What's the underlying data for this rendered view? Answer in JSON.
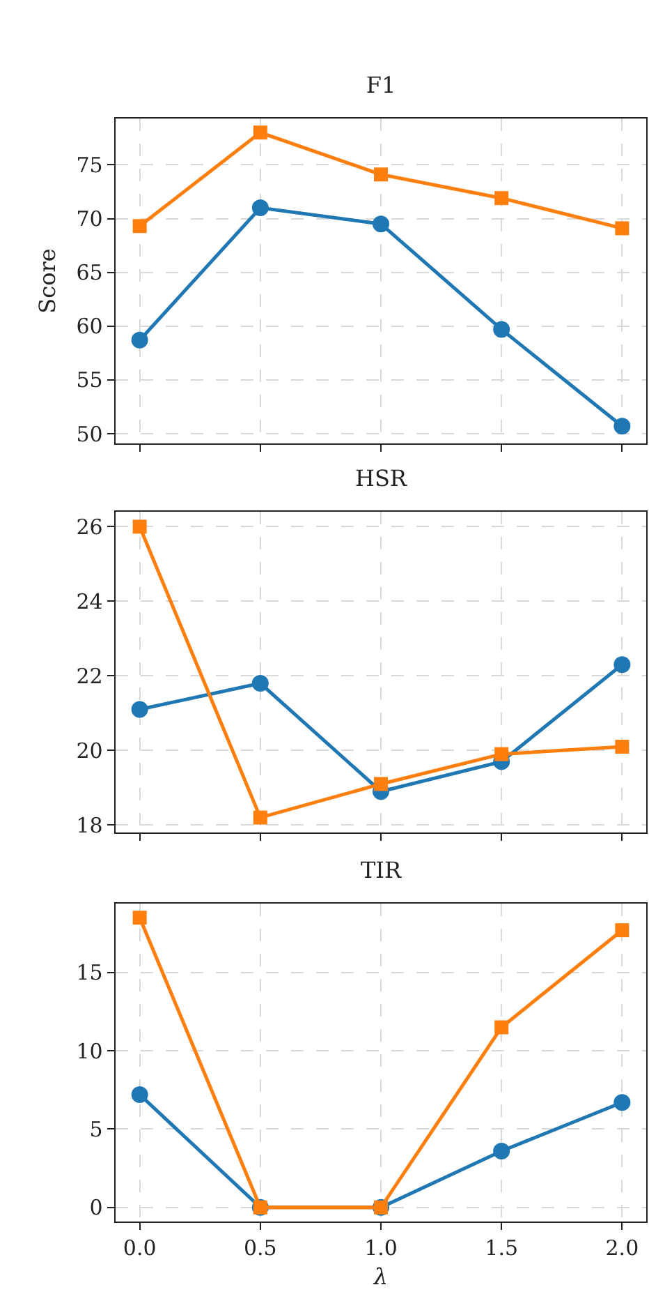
{
  "chart_data": [
    {
      "type": "line",
      "title": "F1",
      "ylabel": "Score",
      "categories": [
        null,
        null,
        null,
        null,
        null
      ],
      "ylim": [
        49.1,
        79.3
      ],
      "yticks": [
        50,
        55,
        60,
        65,
        70,
        75
      ],
      "grid": true,
      "line_style": "solid",
      "series": [
        {
          "color": "#1f77b4",
          "marker": "circle",
          "values": [
            58.7,
            71.0,
            69.5,
            59.7,
            50.7
          ]
        },
        {
          "color": "#ff7f0e",
          "marker": "square",
          "values": [
            69.3,
            78.0,
            74.1,
            71.9,
            69.1
          ]
        }
      ]
    },
    {
      "type": "line",
      "title": "HSR",
      "categories": [
        null,
        null,
        null,
        null,
        null
      ],
      "ylim": [
        17.8,
        26.4
      ],
      "yticks": [
        18,
        20,
        22,
        24,
        26
      ],
      "grid": true,
      "line_style": "solid",
      "series": [
        {
          "color": "#1f77b4",
          "marker": "circle",
          "values": [
            21.1,
            21.8,
            18.9,
            19.7,
            22.3
          ]
        },
        {
          "color": "#ff7f0e",
          "marker": "square",
          "values": [
            26.0,
            18.2,
            19.1,
            19.9,
            20.1
          ]
        }
      ]
    },
    {
      "type": "line",
      "title": "TIR",
      "xlabel": "λ",
      "x": [
        0,
        0.5,
        1,
        1.5,
        2
      ],
      "xlim": [
        -0.1,
        2.1
      ],
      "xticks": [
        {
          "value": 0,
          "label": "0.0"
        },
        {
          "value": 0.5,
          "label": "0.5"
        },
        {
          "value": 1,
          "label": "1.0"
        },
        {
          "value": 1.5,
          "label": "1.5"
        },
        {
          "value": 2,
          "label": "2.0"
        }
      ],
      "ylim": [
        -0.9,
        19.4
      ],
      "yticks": [
        0,
        5,
        10,
        15
      ],
      "grid": true,
      "line_style": "solid",
      "series": [
        {
          "color": "#1f77b4",
          "marker": "circle",
          "values": [
            7.2,
            0,
            0,
            3.6,
            6.7
          ]
        },
        {
          "color": "#ff7f0e",
          "marker": "square",
          "values": [
            18.5,
            0,
            0,
            11.5,
            17.7
          ]
        }
      ]
    }
  ]
}
